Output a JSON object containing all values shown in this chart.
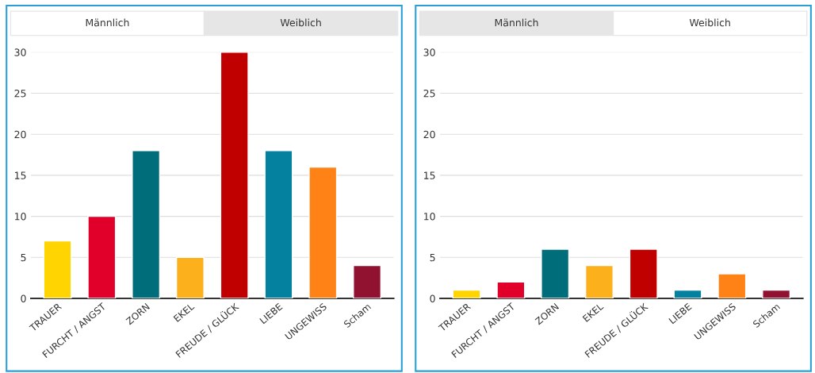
{
  "chart_data": [
    {
      "type": "bar",
      "annotations": [
        "Männlich",
        "Weiblich"
      ],
      "categories": [
        "TRAUER",
        "FURCHT / ANGST",
        "ZORN",
        "EKEL",
        "FREUDE / GLÜCK",
        "LIEBE",
        "UNGEWISS",
        "Scham"
      ],
      "values": [
        7,
        10,
        18,
        5,
        30,
        18,
        16,
        4
      ],
      "colors": [
        "#ffd400",
        "#e0002a",
        "#006e7a",
        "#fbb01c",
        "#c00000",
        "#0581a0",
        "#ff8216",
        "#911230"
      ],
      "ylim": [
        0,
        30
      ],
      "yticks": [
        0,
        5,
        10,
        15,
        20,
        25,
        30
      ],
      "grid": "y"
    },
    {
      "type": "bar",
      "annotations": [
        "Männlich",
        "Weiblich"
      ],
      "categories": [
        "TRAUER",
        "FURCHT / ANGST",
        "ZORN",
        "EKEL",
        "FREUDE / GLÜCK",
        "LIEBE",
        "UNGEWISS",
        "Scham"
      ],
      "values": [
        1,
        2,
        6,
        4,
        6,
        1,
        3,
        1
      ],
      "colors": [
        "#ffd400",
        "#e0002a",
        "#006e7a",
        "#fbb01c",
        "#c00000",
        "#0581a0",
        "#ff8216",
        "#911230"
      ],
      "ylim": [
        0,
        30
      ],
      "yticks": [
        0,
        5,
        10,
        15,
        20,
        25,
        30
      ],
      "grid": "y"
    }
  ]
}
